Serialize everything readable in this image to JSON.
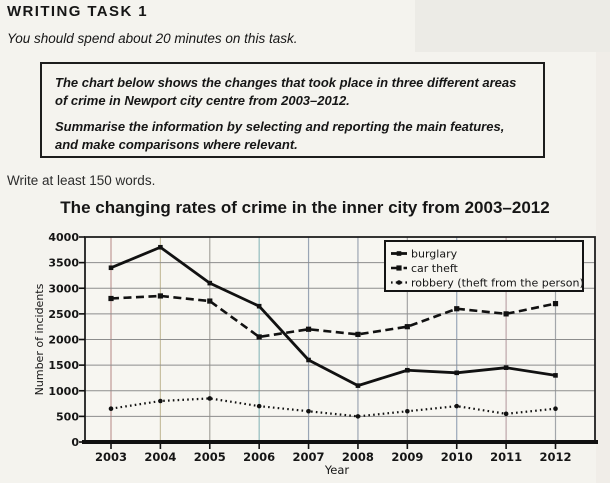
{
  "page": {
    "heading": "WRITING TASK 1",
    "instruction": "You should spend about 20 minutes on this task.",
    "prompt_box": {
      "paragraph1": "The chart below shows the changes that took place in three different areas of crime in Newport city centre from 2003–2012.",
      "paragraph2": "Summarise the information by selecting and reporting the main features, and make comparisons where relevant."
    },
    "word_count_note": "Write at least 150 words."
  },
  "chart_data": {
    "type": "line",
    "title": "The changing rates of crime in the inner city from 2003–2012",
    "xlabel": "Year",
    "ylabel": "Number of incidents",
    "x": [
      2003,
      2004,
      2005,
      2006,
      2007,
      2008,
      2009,
      2010,
      2011,
      2012
    ],
    "ylim": [
      0,
      4000
    ],
    "ytick_step": 500,
    "grid": true,
    "legend_position": "top-right-inside",
    "line_color": "#111111",
    "series": [
      {
        "name": "burglary",
        "line_style": "solid",
        "values": [
          3400,
          3800,
          3100,
          2650,
          1600,
          1100,
          1400,
          1350,
          1450,
          1300
        ]
      },
      {
        "name": "car theft",
        "line_style": "dashed",
        "values": [
          2800,
          2850,
          2750,
          2050,
          2200,
          2100,
          2250,
          2600,
          2500,
          2700
        ]
      },
      {
        "name": "robbery (theft from the person)",
        "line_style": "dotted",
        "values": [
          650,
          800,
          850,
          700,
          600,
          500,
          600,
          700,
          550,
          650
        ]
      }
    ]
  }
}
